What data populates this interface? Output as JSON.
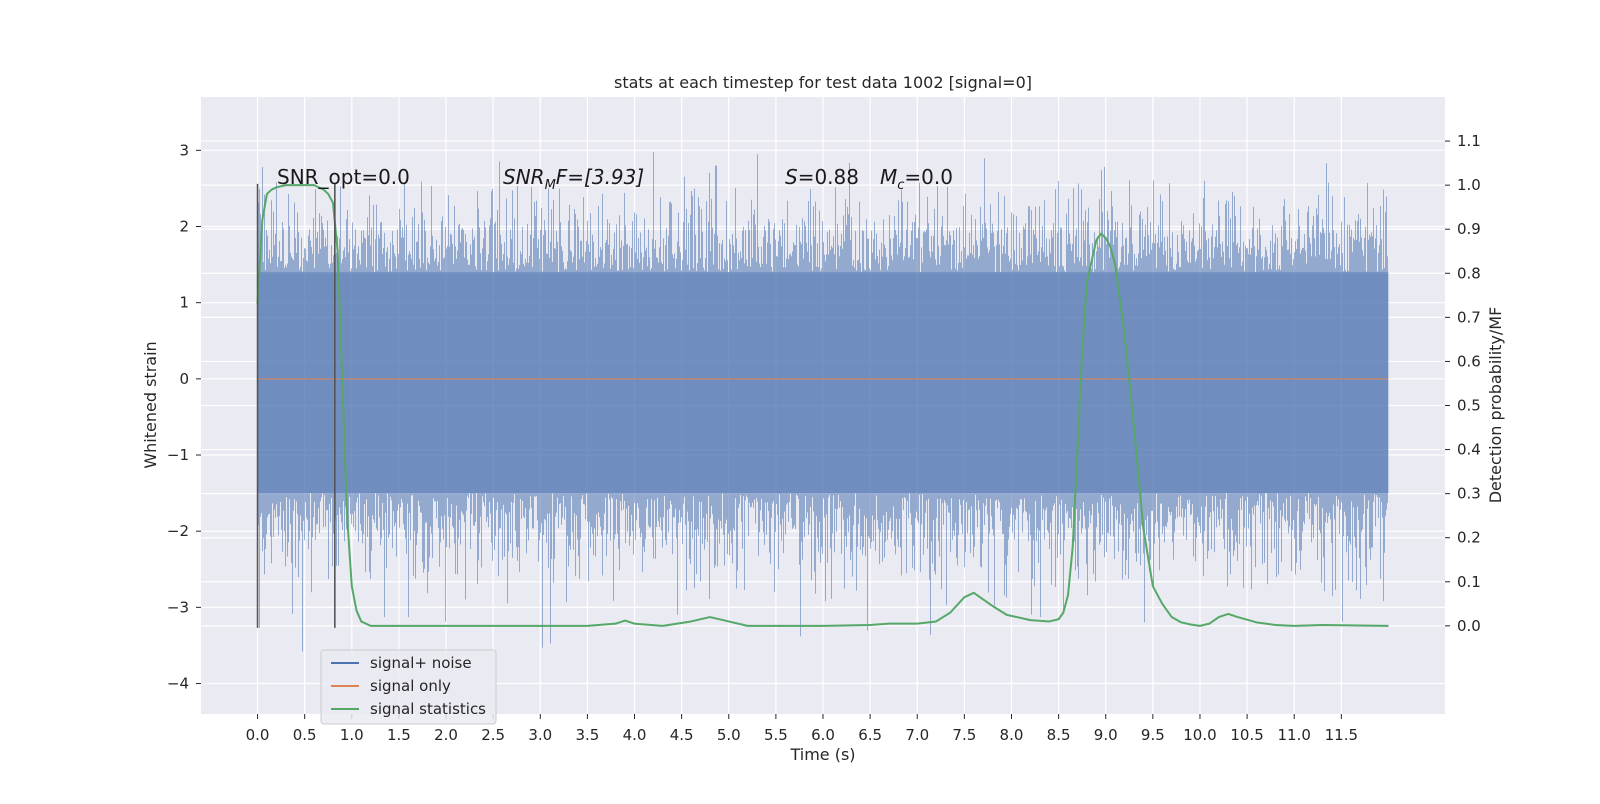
{
  "chart_data": {
    "type": "line",
    "title": "stats at each timestep for test data 1002 [signal=0]",
    "xlabel": "Time (s)",
    "ylabel_left": "Whitened strain",
    "ylabel_right": "Detection probability/MF",
    "xlim": [
      -0.6,
      12.6
    ],
    "ylim_left": [
      -4.4,
      3.7
    ],
    "ylim_right": [
      -0.2,
      1.2
    ],
    "x_ticks": [
      0.0,
      0.5,
      1.0,
      1.5,
      2.0,
      2.5,
      3.0,
      3.5,
      4.0,
      4.5,
      5.0,
      5.5,
      6.0,
      6.5,
      7.0,
      7.5,
      8.0,
      8.5,
      9.0,
      9.5,
      10.0,
      10.5,
      11.0,
      11.5
    ],
    "x_tick_labels": [
      "0.0",
      "0.5",
      "1.0",
      "1.5",
      "2.0",
      "2.5",
      "3.0",
      "3.5",
      "4.0",
      "4.5",
      "5.0",
      "5.5",
      "6.0",
      "6.5",
      "7.0",
      "7.5",
      "8.0",
      "8.5",
      "9.0",
      "9.5",
      "10.0",
      "10.5",
      "11.0",
      "11.5"
    ],
    "y_left_ticks": [
      3,
      2,
      1,
      0,
      -1,
      -2,
      -3,
      -4
    ],
    "y_left_tick_labels": [
      "3",
      "2",
      "1",
      "0",
      "−1",
      "−2",
      "−3",
      "−4"
    ],
    "y_right_ticks": [
      1.1,
      1.0,
      0.9,
      0.8,
      0.7,
      0.6,
      0.5,
      0.4,
      0.3,
      0.2,
      0.1,
      0.0
    ],
    "y_right_tick_labels": [
      "1.1",
      "1.0",
      "0.9",
      "0.8",
      "0.7",
      "0.6",
      "0.5",
      "0.4",
      "0.3",
      "0.2",
      "0.1",
      "0.0"
    ],
    "grid": true,
    "legend_position": "lower-left",
    "annotations": {
      "snr_opt": "SNR_opt=0.0",
      "snr_mf_prefix": "SNR",
      "snr_mf_sub": "M",
      "snr_mf_rest": "F=[3.93]",
      "s_sym": "S",
      "s_value": "=0.88",
      "mc_sym": "M",
      "mc_sub": "c",
      "mc_value": "=0.0"
    },
    "vlines": [
      {
        "x": 0.0,
        "ymin": -3.27,
        "ymax": 2.56
      },
      {
        "x": 0.82,
        "ymin": -3.27,
        "ymax": 2.56
      }
    ],
    "series": [
      {
        "name": "signal+ noise",
        "color": "#4c72b0",
        "axis": "left",
        "style": "noise",
        "x_range": [
          0.0,
          12.0
        ],
        "typical_range": [
          -1.5,
          1.4
        ],
        "envelope_upper": 2.6,
        "envelope_lower": -2.7
      },
      {
        "name": "signal only",
        "color": "#dd8452",
        "axis": "left",
        "x": [
          0.0,
          12.0
        ],
        "values": [
          0.0,
          0.0
        ]
      },
      {
        "name": "signal statistics",
        "color": "#55a868",
        "axis": "right",
        "x": [
          0.0,
          0.05,
          0.1,
          0.15,
          0.2,
          0.3,
          0.4,
          0.5,
          0.6,
          0.65,
          0.7,
          0.75,
          0.8,
          0.85,
          0.9,
          0.95,
          1.0,
          1.05,
          1.1,
          1.2,
          1.5,
          2.0,
          3.0,
          3.5,
          3.8,
          3.9,
          4.0,
          4.3,
          4.6,
          4.8,
          5.0,
          5.2,
          5.5,
          6.0,
          6.5,
          6.7,
          7.0,
          7.2,
          7.35,
          7.5,
          7.6,
          7.7,
          7.8,
          7.95,
          8.2,
          8.4,
          8.5,
          8.55,
          8.6,
          8.65,
          8.7,
          8.75,
          8.8,
          8.9,
          8.95,
          9.0,
          9.05,
          9.1,
          9.2,
          9.3,
          9.4,
          9.5,
          9.6,
          9.7,
          9.8,
          9.9,
          10.0,
          10.1,
          10.2,
          10.3,
          10.4,
          10.6,
          10.8,
          11.0,
          11.3,
          12.0
        ],
        "values": [
          0.73,
          0.92,
          0.98,
          0.99,
          0.995,
          1.0,
          1.0,
          1.0,
          1.0,
          0.995,
          0.99,
          0.98,
          0.96,
          0.85,
          0.55,
          0.25,
          0.09,
          0.035,
          0.01,
          0.0,
          0.0,
          0.0,
          0.0,
          0.0,
          0.005,
          0.012,
          0.005,
          0.0,
          0.01,
          0.02,
          0.01,
          0.0,
          0.0,
          0.0,
          0.002,
          0.005,
          0.005,
          0.01,
          0.03,
          0.065,
          0.075,
          0.06,
          0.045,
          0.025,
          0.013,
          0.01,
          0.015,
          0.03,
          0.07,
          0.18,
          0.4,
          0.62,
          0.78,
          0.875,
          0.89,
          0.88,
          0.86,
          0.82,
          0.66,
          0.45,
          0.22,
          0.09,
          0.05,
          0.02,
          0.008,
          0.003,
          0.0,
          0.005,
          0.02,
          0.027,
          0.02,
          0.008,
          0.002,
          0.0,
          0.002,
          0.0
        ]
      }
    ]
  }
}
